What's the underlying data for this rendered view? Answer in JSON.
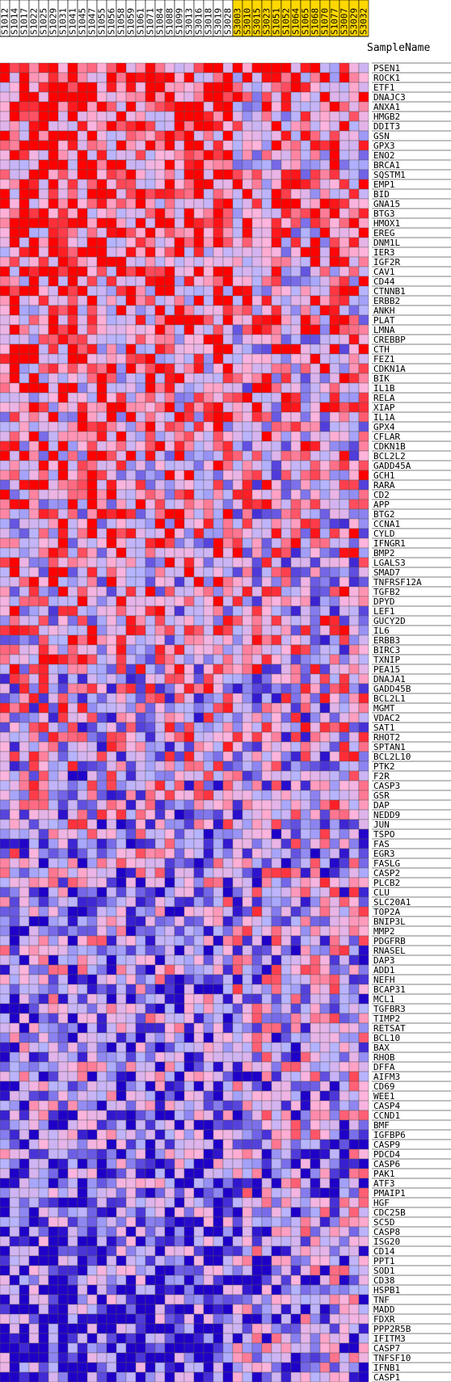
{
  "chart_data": {
    "type": "heatmap",
    "corner_label": "SampleName",
    "columns": [
      "S1012",
      "S1014",
      "S1017",
      "S1022",
      "S1025",
      "S1029",
      "S1031",
      "S1041",
      "S1045",
      "S1047",
      "S1055",
      "S1056",
      "S1058",
      "S1059",
      "S1061",
      "S1071",
      "S1084",
      "S1088",
      "S1099",
      "S3013",
      "S3016",
      "S3018",
      "S3019",
      "S3028",
      "S3003",
      "S3010",
      "S3015",
      "S3023",
      "S1051",
      "S1052",
      "S1064",
      "S1065",
      "S1068",
      "S1070",
      "S1077",
      "S3007",
      "S3029",
      "S3032"
    ],
    "column_group_colors": [
      "#ffffff",
      "#ffffff",
      "#ffffff",
      "#ffffff",
      "#ffffff",
      "#ffffff",
      "#ffffff",
      "#ffffff",
      "#ffffff",
      "#ffffff",
      "#ffffff",
      "#ffffff",
      "#ffffff",
      "#ffffff",
      "#ffffff",
      "#ffffff",
      "#ffffff",
      "#ffffff",
      "#ffffff",
      "#ffffff",
      "#ffffff",
      "#ffffff",
      "#ffffff",
      "#ffffff",
      "#ffd700",
      "#ffd700",
      "#ffd700",
      "#ffd700",
      "#ffd700",
      "#ffd700",
      "#ffd700",
      "#ffd700",
      "#ffd700",
      "#ffd700",
      "#ffd700",
      "#ffd700",
      "#ffd700",
      "#ffd700"
    ],
    "rows": [
      "PSEN1",
      "ROCK1",
      "ETF1",
      "DNAJC3",
      "ANXA1",
      "HMGB2",
      "DDIT3",
      "GSN",
      "GPX3",
      "ENO2",
      "BRCA1",
      "SQSTM1",
      "EMP1",
      "BID",
      "GNA15",
      "BTG3",
      "HMOX1",
      "EREG",
      "DNM1L",
      "IER3",
      "IGF2R",
      "CAV1",
      "CD44",
      "CTNNB1",
      "ERBB2",
      "ANKH",
      "PLAT",
      "LMNA",
      "CREBBP",
      "CTH",
      "FEZ1",
      "CDKN1A",
      "BIK",
      "IL1B",
      "RELA",
      "XIAP",
      "IL1A",
      "GPX4",
      "CFLAR",
      "CDKN1B",
      "BCL2L2",
      "GADD45A",
      "GCH1",
      "RARA",
      "CD2",
      "APP",
      "BTG2",
      "CCNA1",
      "CYLD",
      "IFNGR1",
      "BMP2",
      "LGALS3",
      "SMAD7",
      "TNFRSF12A",
      "TGFB2",
      "DPYD",
      "LEF1",
      "GUCY2D",
      "IL6",
      "ERBB3",
      "BIRC3",
      "TXNIP",
      "PEA15",
      "DNAJA1",
      "GADD45B",
      "BCL2L1",
      "MGMT",
      "VDAC2",
      "SAT1",
      "RHOT2",
      "SPTAN1",
      "BCL2L10",
      "PTK2",
      "F2R",
      "CASP3",
      "GSR",
      "DAP",
      "NEDD9",
      "JUN",
      "TSPO",
      "FAS",
      "EGR3",
      "FASLG",
      "CASP2",
      "PLCB2",
      "CLU",
      "SLC20A1",
      "TOP2A",
      "BNIP3L",
      "MMP2",
      "PDGFRB",
      "RNASEL",
      "DAP3",
      "ADD1",
      "NEFH",
      "BCAP31",
      "MCL1",
      "TGFBR3",
      "TIMP2",
      "RETSAT",
      "BCL10",
      "BAX",
      "RHOB",
      "DFFA",
      "AIFM3",
      "CD69",
      "WEE1",
      "CASP4",
      "CCND1",
      "BMF",
      "IGFBP6",
      "CASP9",
      "PDCD4",
      "CASP6",
      "PAK1",
      "ATF3",
      "PMAIP1",
      "HGF",
      "CDC25B",
      "SC5D",
      "CASP8",
      "ISG20",
      "CD14",
      "PPT1",
      "SOD1",
      "CD38",
      "HSPB1",
      "TNF",
      "MADD",
      "FDXR",
      "PPP2R5B",
      "IFITM3",
      "CASP7",
      "TNFSF10",
      "IFNB1",
      "CASP1"
    ],
    "color_scale": {
      "low": "#1e00c8",
      "mid_low": "#b4b4ff",
      "mid_high": "#ffb4dc",
      "high": "#ff0000"
    },
    "grid": true,
    "values_note": "estimated"
  }
}
